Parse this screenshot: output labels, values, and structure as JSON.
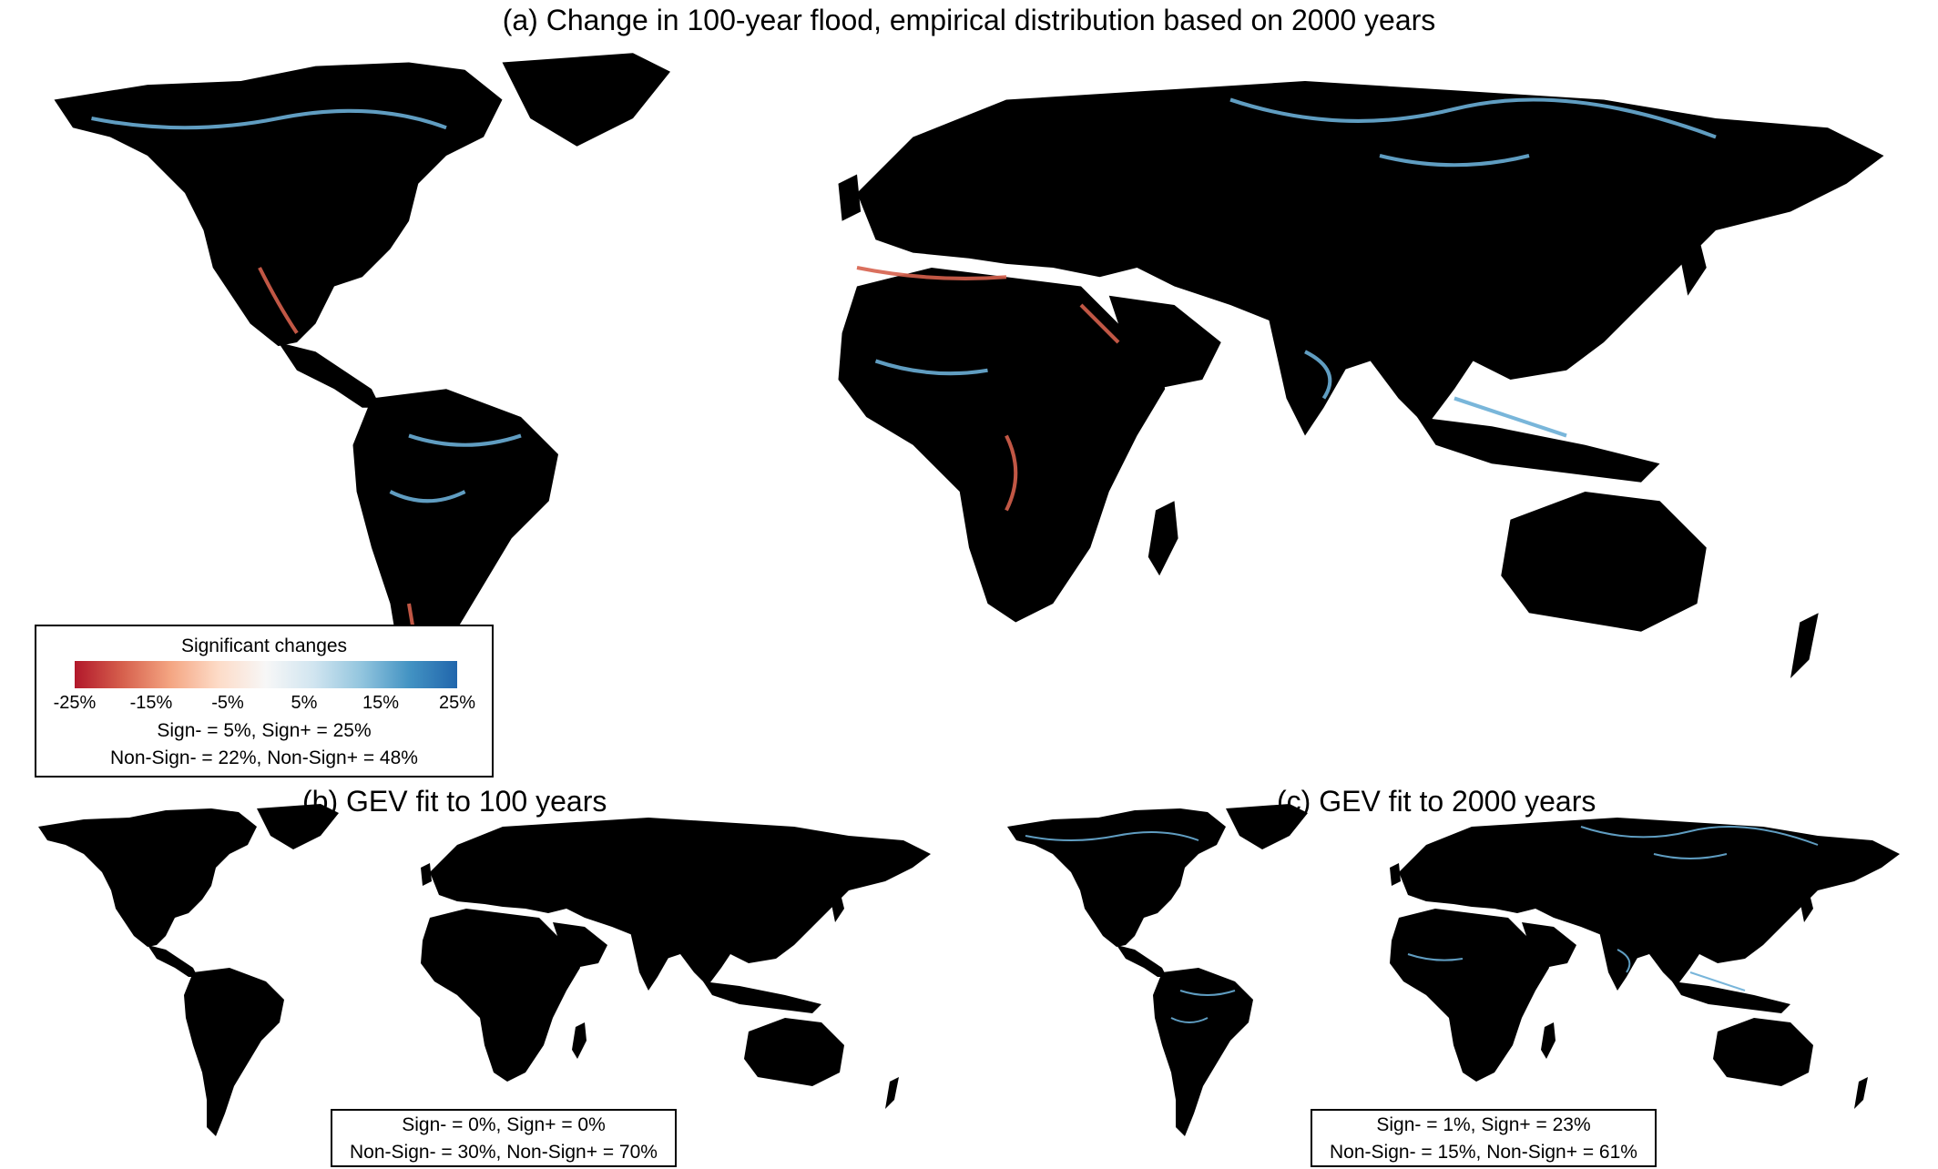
{
  "panels": {
    "a": {
      "title": "(a) Change in 100-year flood, empirical distribution based on 2000 years",
      "stats_line1": "Sign- = 5%, Sign+ = 25%",
      "stats_line2": "Non-Sign- = 22%, Non-Sign+ = 48%"
    },
    "b": {
      "title": "(b) GEV fit to 100 years",
      "stats_line1": "Sign- = 0%, Sign+ = 0%",
      "stats_line2": "Non-Sign- = 30%, Non-Sign+ = 70%"
    },
    "c": {
      "title": "(c) GEV fit to 2000 years",
      "stats_line1": "Sign- = 1%, Sign+ = 23%",
      "stats_line2": "Non-Sign- = 15%, Non-Sign+ = 61%"
    }
  },
  "legend": {
    "title": "Significant changes",
    "ticks": [
      "-25%",
      "-15%",
      "-5%",
      "5%",
      "15%",
      "25%"
    ],
    "colors": [
      "#b2182b",
      "#d6604d",
      "#f4a582",
      "#fddbc7",
      "#f7f7f7",
      "#d1e5f0",
      "#92c5de",
      "#4393c3",
      "#2166ac"
    ]
  },
  "colors": {
    "land": "#000000",
    "ocean": "#ffffff",
    "decrease": "#d6604d",
    "increase": "#6aaed6"
  }
}
